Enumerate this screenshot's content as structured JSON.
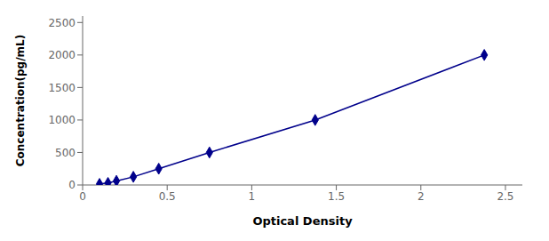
{
  "chart_data": {
    "type": "line",
    "x": [
      0.1,
      0.15,
      0.2,
      0.3,
      0.45,
      0.75,
      1.375,
      2.375
    ],
    "values": [
      15.6,
      31.25,
      62.5,
      125,
      250,
      500,
      1000,
      2000
    ],
    "color": "#00008B",
    "marker": "diamond",
    "xlabel": "Optical Density",
    "ylabel": "Concentration(pg/mL)",
    "xlim": [
      0,
      2.6
    ],
    "ylim": [
      0,
      2600
    ],
    "xticks": [
      0,
      0.5,
      1,
      1.5,
      2,
      2.5
    ],
    "yticks": [
      0,
      500,
      1000,
      1500,
      2000,
      2500
    ]
  }
}
